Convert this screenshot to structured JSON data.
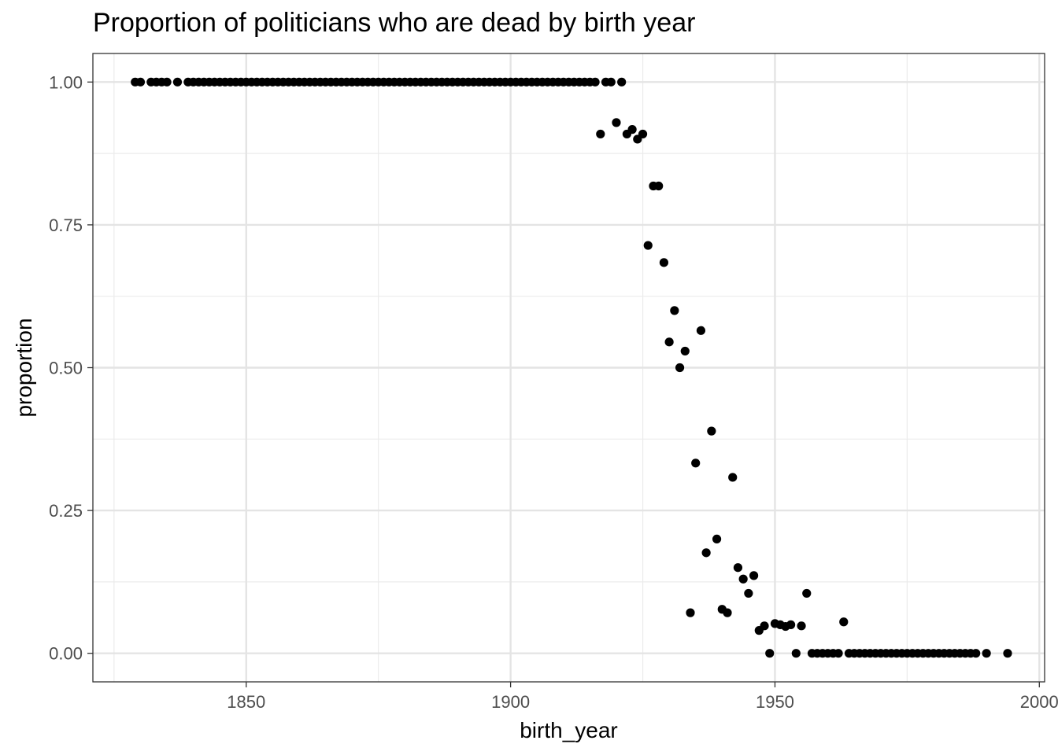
{
  "chart_data": {
    "type": "scatter",
    "title": "Proportion of politicians who are dead by birth year",
    "xlabel": "birth_year",
    "ylabel": "proportion",
    "xlim": [
      1821,
      2001
    ],
    "ylim": [
      -0.05,
      1.05
    ],
    "x_ticks": [
      1850,
      1900,
      1950,
      2000
    ],
    "x_tick_labels": [
      "1850",
      "1900",
      "1950",
      "2000"
    ],
    "y_ticks": [
      0,
      0.25,
      0.5,
      0.75,
      1
    ],
    "y_tick_labels": [
      "0.00",
      "0.25",
      "0.50",
      "0.75",
      "1.00"
    ],
    "grid": true,
    "point_color": "#000000",
    "points": [
      [
        1829,
        1
      ],
      [
        1830,
        1
      ],
      [
        1832,
        1
      ],
      [
        1833,
        1
      ],
      [
        1834,
        1
      ],
      [
        1835,
        1
      ],
      [
        1837,
        1
      ],
      [
        1839,
        1
      ],
      [
        1840,
        1
      ],
      [
        1841,
        1
      ],
      [
        1842,
        1
      ],
      [
        1843,
        1
      ],
      [
        1844,
        1
      ],
      [
        1845,
        1
      ],
      [
        1846,
        1
      ],
      [
        1847,
        1
      ],
      [
        1848,
        1
      ],
      [
        1849,
        1
      ],
      [
        1850,
        1
      ],
      [
        1851,
        1
      ],
      [
        1852,
        1
      ],
      [
        1853,
        1
      ],
      [
        1854,
        1
      ],
      [
        1855,
        1
      ],
      [
        1856,
        1
      ],
      [
        1857,
        1
      ],
      [
        1858,
        1
      ],
      [
        1859,
        1
      ],
      [
        1860,
        1
      ],
      [
        1861,
        1
      ],
      [
        1862,
        1
      ],
      [
        1863,
        1
      ],
      [
        1864,
        1
      ],
      [
        1865,
        1
      ],
      [
        1866,
        1
      ],
      [
        1867,
        1
      ],
      [
        1868,
        1
      ],
      [
        1869,
        1
      ],
      [
        1870,
        1
      ],
      [
        1871,
        1
      ],
      [
        1872,
        1
      ],
      [
        1873,
        1
      ],
      [
        1874,
        1
      ],
      [
        1875,
        1
      ],
      [
        1876,
        1
      ],
      [
        1877,
        1
      ],
      [
        1878,
        1
      ],
      [
        1879,
        1
      ],
      [
        1880,
        1
      ],
      [
        1881,
        1
      ],
      [
        1882,
        1
      ],
      [
        1883,
        1
      ],
      [
        1884,
        1
      ],
      [
        1885,
        1
      ],
      [
        1886,
        1
      ],
      [
        1887,
        1
      ],
      [
        1888,
        1
      ],
      [
        1889,
        1
      ],
      [
        1890,
        1
      ],
      [
        1891,
        1
      ],
      [
        1892,
        1
      ],
      [
        1893,
        1
      ],
      [
        1894,
        1
      ],
      [
        1895,
        1
      ],
      [
        1896,
        1
      ],
      [
        1897,
        1
      ],
      [
        1898,
        1
      ],
      [
        1899,
        1
      ],
      [
        1900,
        1
      ],
      [
        1901,
        1
      ],
      [
        1902,
        1
      ],
      [
        1903,
        1
      ],
      [
        1904,
        1
      ],
      [
        1905,
        1
      ],
      [
        1906,
        1
      ],
      [
        1907,
        1
      ],
      [
        1908,
        1
      ],
      [
        1909,
        1
      ],
      [
        1910,
        1
      ],
      [
        1911,
        1
      ],
      [
        1912,
        1
      ],
      [
        1913,
        1
      ],
      [
        1914,
        1
      ],
      [
        1915,
        1
      ],
      [
        1916,
        1
      ],
      [
        1918,
        1
      ],
      [
        1919,
        1
      ],
      [
        1921,
        1
      ],
      [
        1917,
        0.909
      ],
      [
        1920,
        0.929
      ],
      [
        1922,
        0.909
      ],
      [
        1923,
        0.917
      ],
      [
        1924,
        0.9
      ],
      [
        1925,
        0.909
      ],
      [
        1926,
        0.714
      ],
      [
        1927,
        0.818
      ],
      [
        1928,
        0.818
      ],
      [
        1929,
        0.684
      ],
      [
        1930,
        0.545
      ],
      [
        1931,
        0.6
      ],
      [
        1932,
        0.5
      ],
      [
        1933,
        0.529
      ],
      [
        1934,
        0.071
      ],
      [
        1935,
        0.333
      ],
      [
        1936,
        0.565
      ],
      [
        1937,
        0.176
      ],
      [
        1938,
        0.389
      ],
      [
        1939,
        0.2
      ],
      [
        1940,
        0.077
      ],
      [
        1941,
        0.071
      ],
      [
        1942,
        0.308
      ],
      [
        1943,
        0.15
      ],
      [
        1944,
        0.13
      ],
      [
        1945,
        0.105
      ],
      [
        1946,
        0.136
      ],
      [
        1947,
        0.04
      ],
      [
        1948,
        0.048
      ],
      [
        1949,
        0
      ],
      [
        1950,
        0.052
      ],
      [
        1951,
        0.05
      ],
      [
        1952,
        0.047
      ],
      [
        1953,
        0.05
      ],
      [
        1954,
        0
      ],
      [
        1955,
        0.048
      ],
      [
        1956,
        0.105
      ],
      [
        1957,
        0
      ],
      [
        1958,
        0
      ],
      [
        1959,
        0
      ],
      [
        1960,
        0
      ],
      [
        1961,
        0
      ],
      [
        1962,
        0
      ],
      [
        1963,
        0.055
      ],
      [
        1964,
        0
      ],
      [
        1965,
        0
      ],
      [
        1966,
        0
      ],
      [
        1967,
        0
      ],
      [
        1968,
        0
      ],
      [
        1969,
        0
      ],
      [
        1970,
        0
      ],
      [
        1971,
        0
      ],
      [
        1972,
        0
      ],
      [
        1973,
        0
      ],
      [
        1974,
        0
      ],
      [
        1975,
        0
      ],
      [
        1976,
        0
      ],
      [
        1977,
        0
      ],
      [
        1978,
        0
      ],
      [
        1979,
        0
      ],
      [
        1980,
        0
      ],
      [
        1981,
        0
      ],
      [
        1982,
        0
      ],
      [
        1983,
        0
      ],
      [
        1984,
        0
      ],
      [
        1985,
        0
      ],
      [
        1986,
        0
      ],
      [
        1987,
        0
      ],
      [
        1988,
        0
      ],
      [
        1990,
        0
      ],
      [
        1994,
        0
      ]
    ]
  }
}
